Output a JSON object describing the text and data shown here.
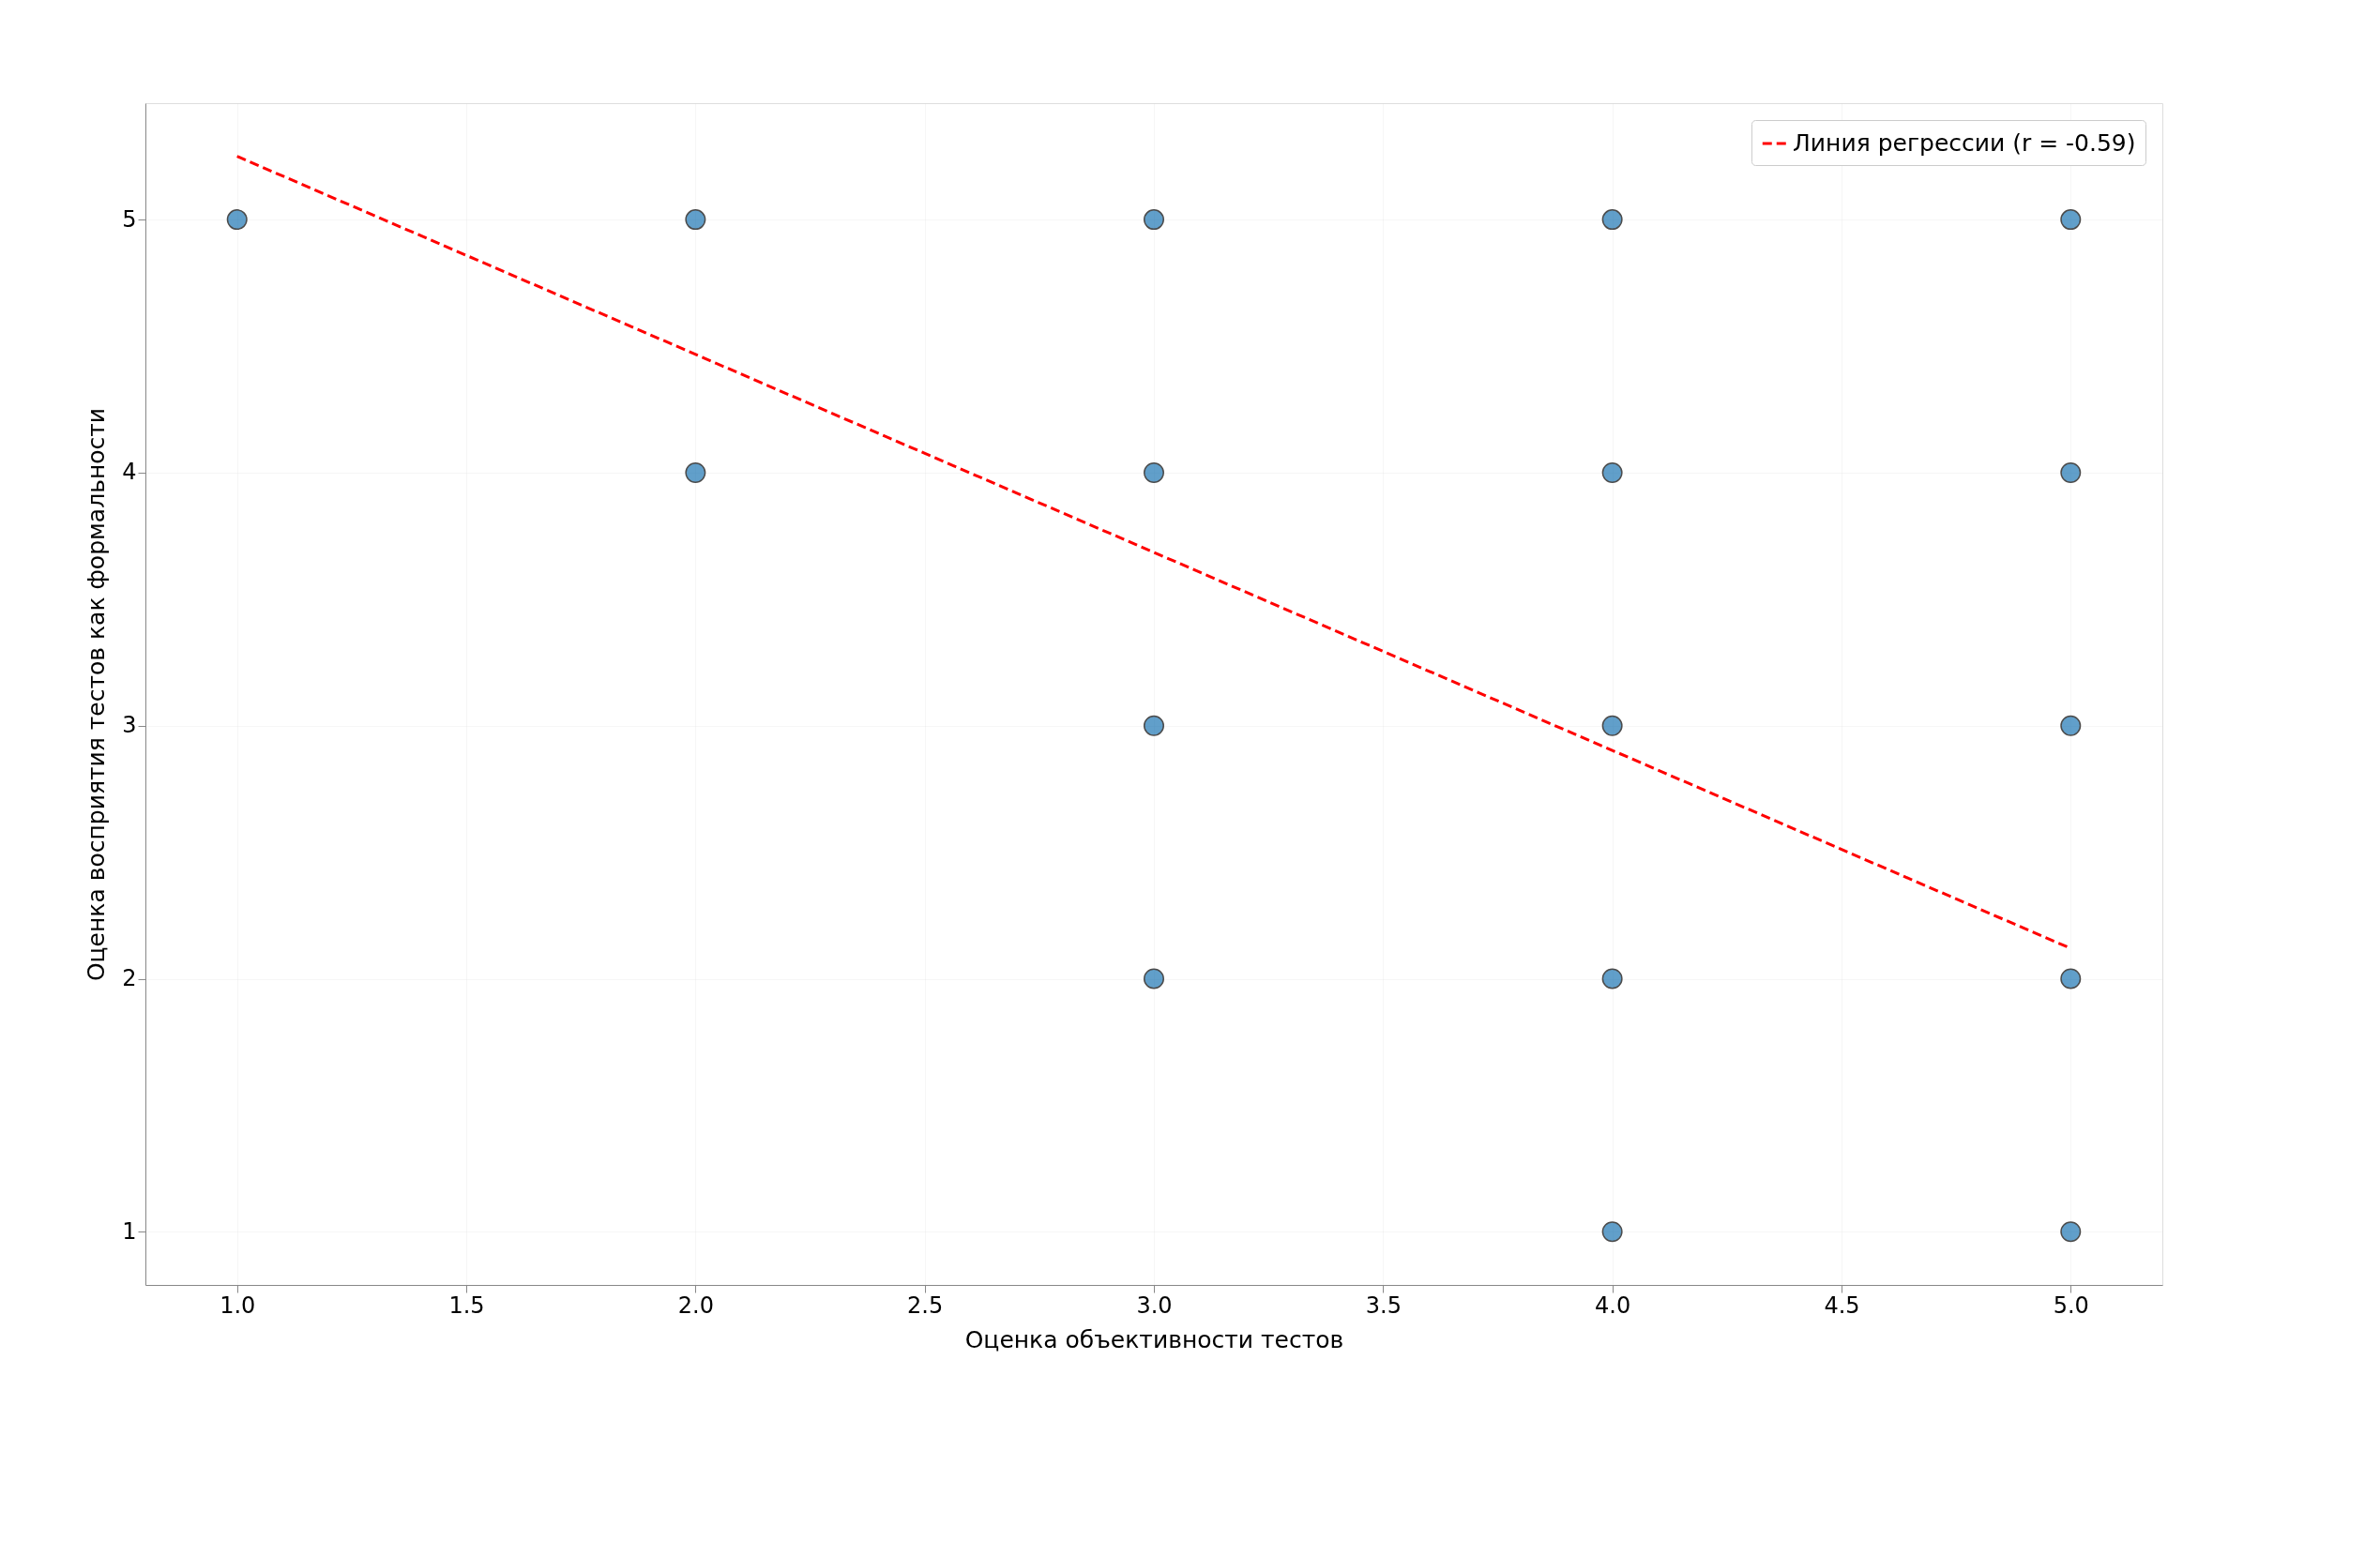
{
  "chart_data": {
    "type": "scatter",
    "xlabel": "Оценка объективности тестов",
    "ylabel": "Оценка восприятия тестов как формальности",
    "xlim": [
      0.8,
      5.2
    ],
    "ylim": [
      0.79,
      5.46
    ],
    "xticks": [
      {
        "value": 1.0,
        "label": "1.0"
      },
      1.5,
      {
        "value": 2.0,
        "label": "2.0"
      },
      2.5,
      {
        "value": 3.0,
        "label": "3.0"
      },
      3.5,
      {
        "value": 4.0,
        "label": "4.0"
      },
      4.5,
      {
        "value": 5.0,
        "label": "5.0"
      }
    ],
    "yticks": [
      1,
      2,
      3,
      4,
      5
    ],
    "grid": true,
    "legend": "top right",
    "series": [
      {
        "marker": "circle",
        "color": "#1f77b4",
        "x": [
          1,
          2,
          2,
          3,
          3,
          3,
          3,
          4,
          4,
          4,
          4,
          4,
          5,
          5,
          5,
          5,
          5
        ],
        "values": [
          5,
          5,
          4,
          5,
          4,
          3,
          2,
          5,
          4,
          3,
          2,
          1,
          5,
          4,
          3,
          2,
          1
        ]
      },
      {
        "type": "line",
        "name": "Линия регрессии (r = -0.59)",
        "color": "#ff0000",
        "line_style": "dashed",
        "x": [
          1,
          5
        ],
        "values": [
          5.25,
          2.12
        ]
      }
    ]
  }
}
